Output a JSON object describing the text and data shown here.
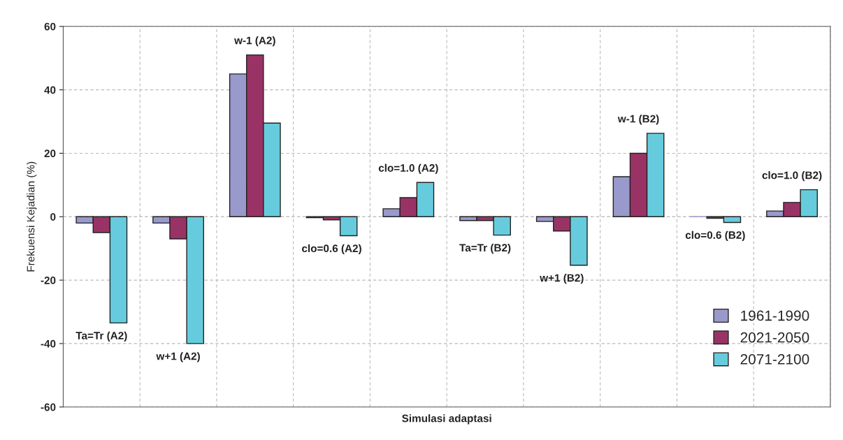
{
  "chart_data": {
    "type": "bar",
    "xlabel": "Simulasi adaptasi",
    "ylabel": "Frekuensi Kejadian (%)",
    "categories": [
      "Ta=Tr (A2)",
      "w+1 (A2)",
      "w-1 (A2)",
      "clo=0.6 (A2)",
      "clo=1.0 (A2)",
      "Ta=Tr (B2)",
      "w+1 (B2)",
      "w-1 (B2)",
      "clo=0.6 (B2)",
      "clo=1.0 (B2)"
    ],
    "series": [
      {
        "name": "1961-1990",
        "color": "#9999cc",
        "values": [
          -2,
          -2,
          45,
          -0.3,
          2.5,
          -1.2,
          -1.5,
          12.6,
          0,
          1.8
        ]
      },
      {
        "name": "2021-2050",
        "color": "#993366",
        "values": [
          -5,
          -7,
          51,
          -1,
          6,
          -1.2,
          -4.5,
          20,
          -0.5,
          4.5
        ]
      },
      {
        "name": "2071-2100",
        "color": "#66ccdd",
        "values": [
          -33.5,
          -40,
          29.5,
          -6,
          10.8,
          -5.8,
          -15.3,
          26.3,
          -1.8,
          8.5
        ]
      }
    ],
    "ylim": [
      -60,
      60
    ],
    "yticks": [
      -60,
      -40,
      -20,
      0,
      20,
      40,
      60
    ],
    "grid": true,
    "legend": "bottom right"
  }
}
